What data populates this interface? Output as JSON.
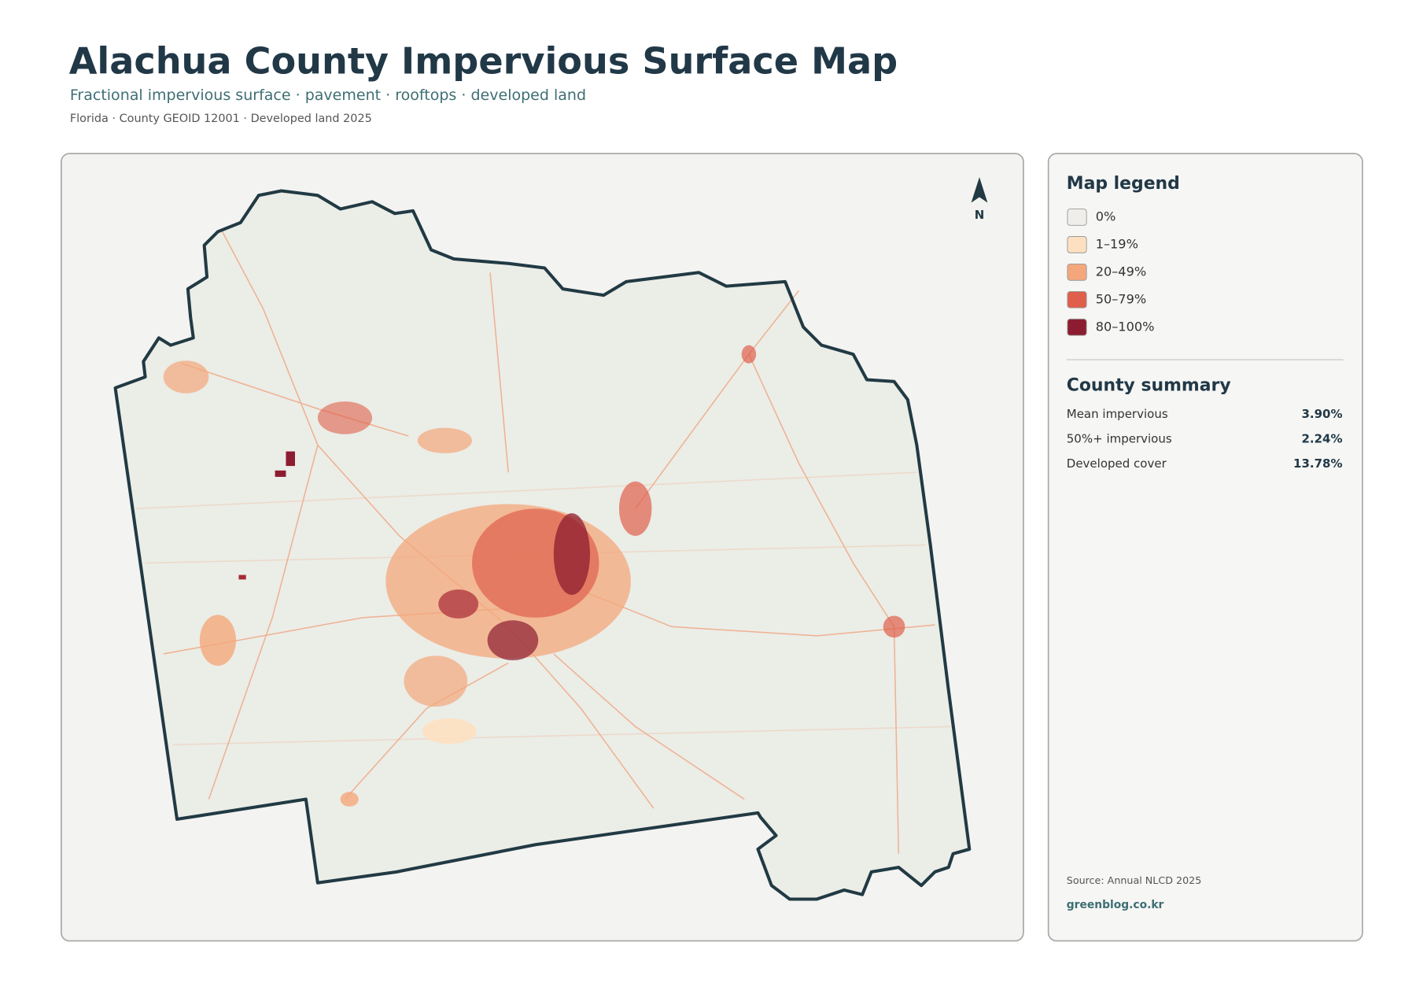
{
  "header": {
    "title": "Alachua County Impervious Surface Map",
    "subtitle": "Fractional impervious surface · pavement · rooftops · developed land",
    "meta": "Florida · County GEOID 12001 · Developed land 2025"
  },
  "map": {
    "north": "N"
  },
  "legend": {
    "title": "Map legend",
    "items": [
      {
        "label": "0%",
        "color": "#efeeea"
      },
      {
        "label": "1–19%",
        "color": "#fde0c0"
      },
      {
        "label": "20–49%",
        "color": "#f4a77b"
      },
      {
        "label": "50–79%",
        "color": "#df5f4b"
      },
      {
        "label": "80–100%",
        "color": "#8c1d30"
      }
    ]
  },
  "summary": {
    "title": "County summary",
    "rows": [
      {
        "label": "Mean impervious",
        "value": "3.90%"
      },
      {
        "label": "50%+ impervious",
        "value": "2.24%"
      },
      {
        "label": "Developed cover",
        "value": "13.78%"
      }
    ]
  },
  "footer": {
    "source": "Source: Annual NLCD 2025",
    "site": "greenblog.co.kr"
  }
}
